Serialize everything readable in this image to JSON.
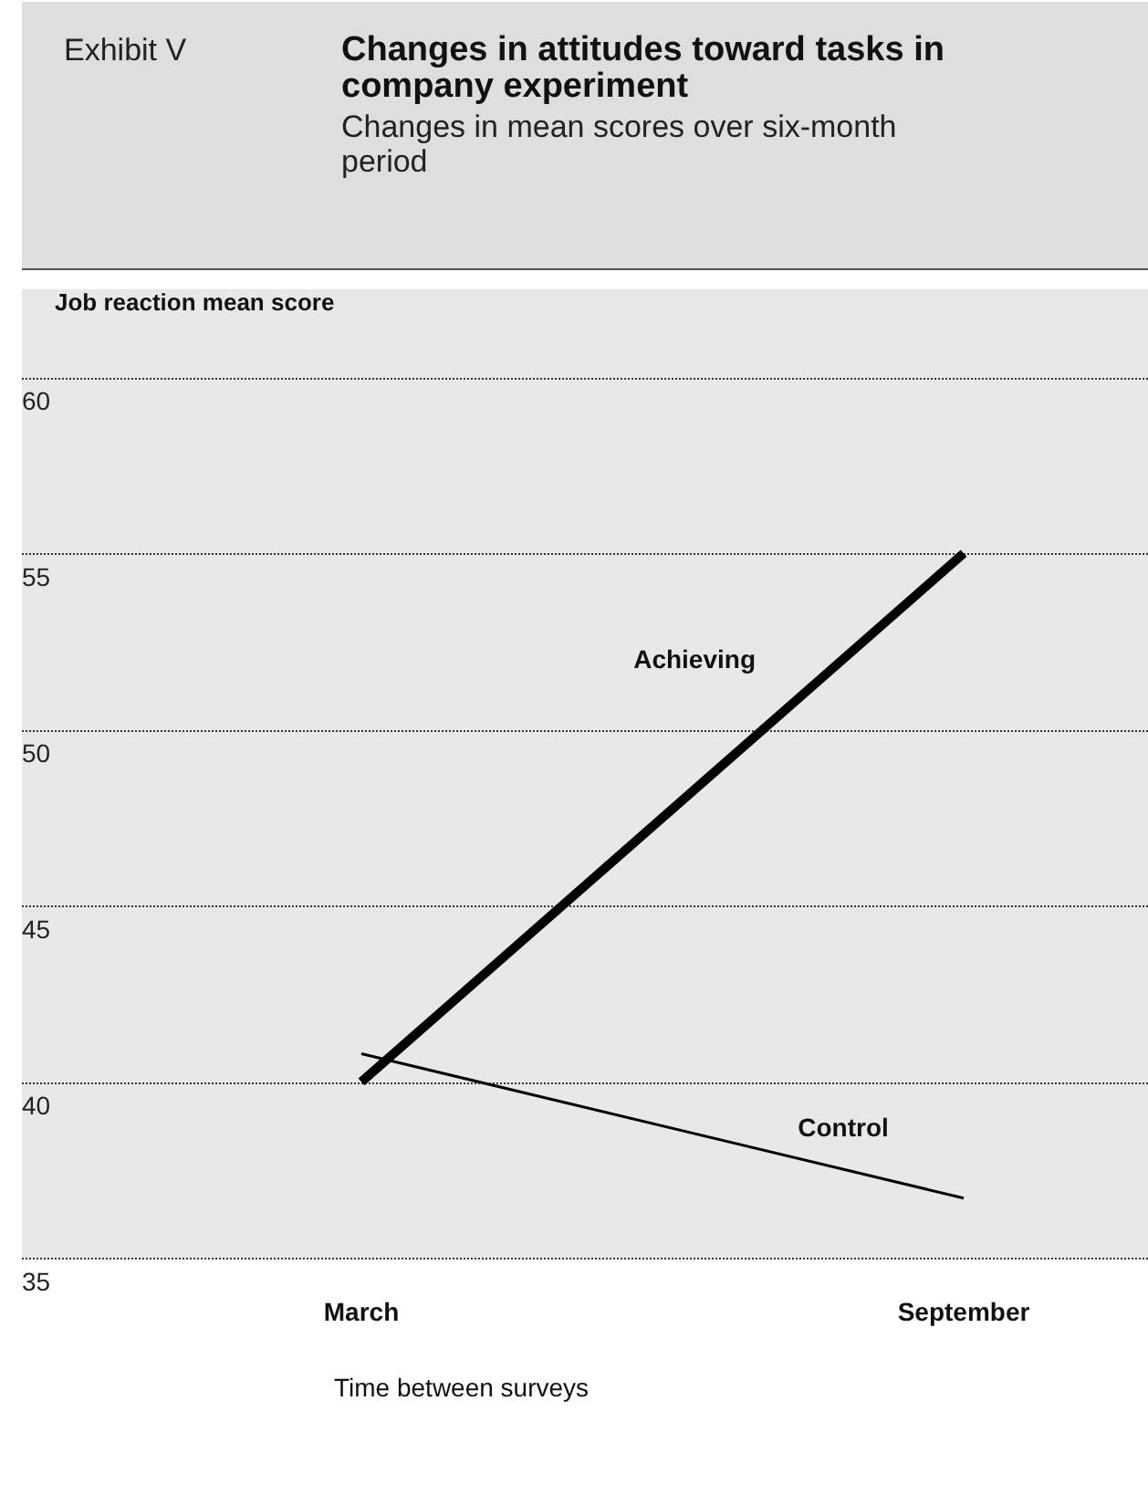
{
  "chart_data": {
    "type": "line",
    "title": "Changes in attitudes toward tasks in company experiment",
    "subtitle": "Changes in mean scores over six-month period",
    "annotations": [
      "Exhibit V"
    ],
    "ylabel": "Job reaction mean score",
    "xlabel": "Time between surveys",
    "categories": [
      "March",
      "September"
    ],
    "series": [
      {
        "name": "Achieving",
        "color": "#000000",
        "values": [
          40,
          55
        ]
      },
      {
        "name": "Control",
        "color": "#000000",
        "values": [
          40.8,
          36.7
        ]
      }
    ],
    "ylim": [
      35,
      62.5
    ],
    "yticks": [
      35,
      40,
      45,
      50,
      55,
      60
    ],
    "grid": "y",
    "marker": "none",
    "line_style": "solid",
    "legend": false
  }
}
